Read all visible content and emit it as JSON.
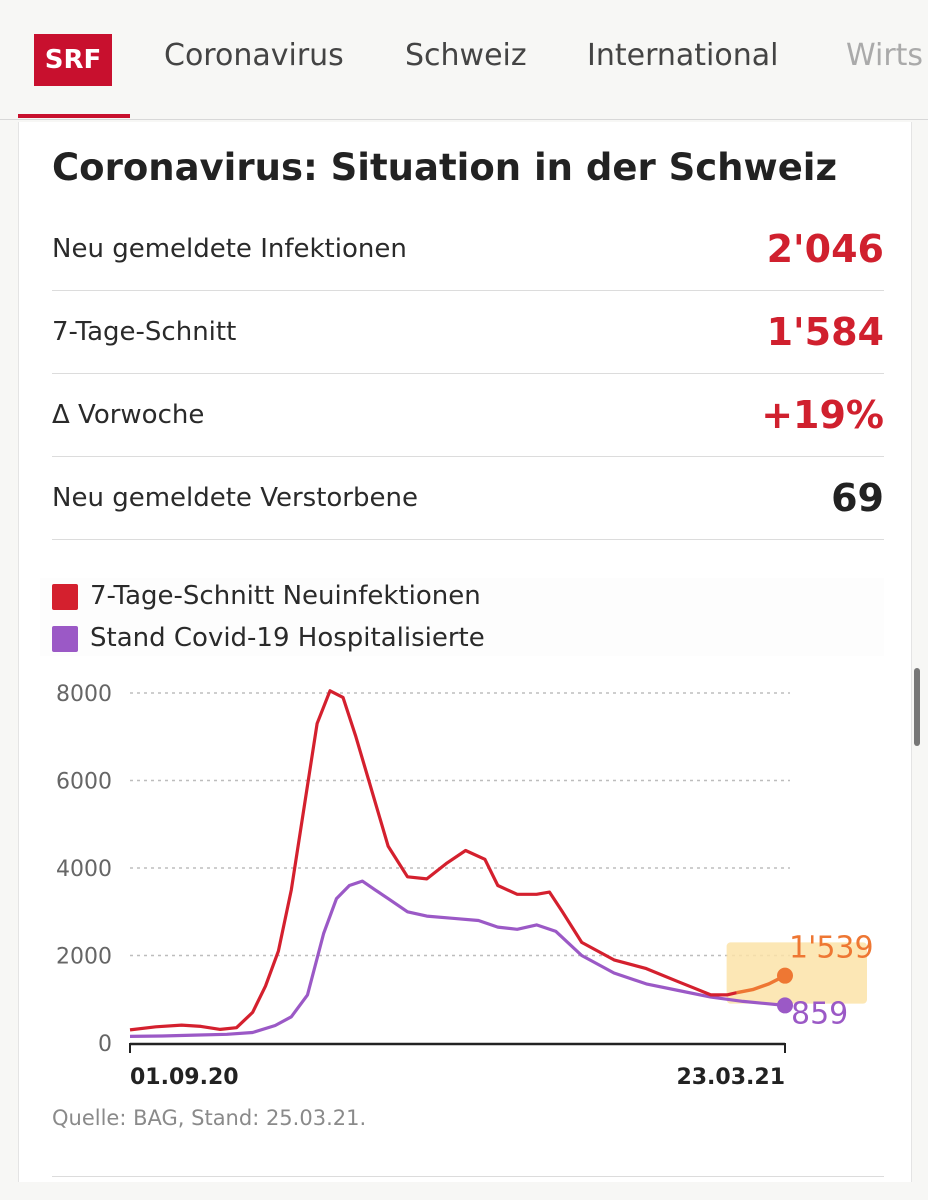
{
  "header": {
    "logo": "SRF",
    "nav": [
      "Coronavirus",
      "Schweiz",
      "International",
      "Wirts"
    ]
  },
  "title": "Coronavirus: Situation in der Schweiz",
  "stats": [
    {
      "label": "Neu gemeldete Infektionen",
      "value": "2'046",
      "color": "#d0202e"
    },
    {
      "label": "7-Tage-Schnitt",
      "value": "1'584",
      "color": "#d0202e"
    },
    {
      "label": "Δ Vorwoche",
      "value": "+19%",
      "color": "#d0202e"
    },
    {
      "label": "Neu gemeldete Verstorbene",
      "value": "69",
      "color": "#222222"
    }
  ],
  "colors": {
    "brand": "#c8102e",
    "infections": "#d4202e",
    "hospitalized": "#9b59c6",
    "highlight": "#ee7733",
    "highlight_bg": "#fbe3a8"
  },
  "chart_data": {
    "type": "line",
    "legend": [
      "7-Tage-Schnitt Neuinfektionen",
      "Stand Covid-19 Hospitalisierte"
    ],
    "legend_placement": "top-left",
    "ylim": [
      0,
      8000
    ],
    "yticks": [
      "8000",
      "6000",
      "4000",
      "2000",
      "0"
    ],
    "x_tick_labels": [
      "01.09.20",
      "23.03.21"
    ],
    "x_range_days": [
      0,
      203
    ],
    "grid": true,
    "series": [
      {
        "name": "7-Tage-Schnitt Neuinfektionen",
        "color": "#d4202e",
        "points": [
          [
            0,
            300
          ],
          [
            8,
            370
          ],
          [
            16,
            410
          ],
          [
            22,
            380
          ],
          [
            28,
            310
          ],
          [
            33,
            350
          ],
          [
            38,
            700
          ],
          [
            42,
            1300
          ],
          [
            46,
            2100
          ],
          [
            50,
            3500
          ],
          [
            54,
            5400
          ],
          [
            58,
            7300
          ],
          [
            62,
            8050
          ],
          [
            66,
            7900
          ],
          [
            70,
            7000
          ],
          [
            74,
            6000
          ],
          [
            80,
            4500
          ],
          [
            86,
            3800
          ],
          [
            92,
            3750
          ],
          [
            98,
            4100
          ],
          [
            104,
            4400
          ],
          [
            110,
            4200
          ],
          [
            114,
            3600
          ],
          [
            120,
            3400
          ],
          [
            126,
            3400
          ],
          [
            130,
            3450
          ],
          [
            134,
            3000
          ],
          [
            140,
            2300
          ],
          [
            150,
            1900
          ],
          [
            160,
            1700
          ],
          [
            170,
            1400
          ],
          [
            175,
            1250
          ],
          [
            180,
            1100
          ],
          [
            185,
            1100
          ],
          [
            188,
            1150
          ]
        ]
      },
      {
        "name": "Stand Covid-19 Hospitalisierte",
        "color": "#9b59c6",
        "points": [
          [
            0,
            150
          ],
          [
            10,
            160
          ],
          [
            20,
            180
          ],
          [
            30,
            200
          ],
          [
            38,
            240
          ],
          [
            45,
            400
          ],
          [
            50,
            600
          ],
          [
            55,
            1100
          ],
          [
            60,
            2500
          ],
          [
            64,
            3300
          ],
          [
            68,
            3600
          ],
          [
            72,
            3700
          ],
          [
            76,
            3500
          ],
          [
            80,
            3300
          ],
          [
            86,
            3000
          ],
          [
            92,
            2900
          ],
          [
            100,
            2850
          ],
          [
            108,
            2800
          ],
          [
            114,
            2650
          ],
          [
            120,
            2600
          ],
          [
            126,
            2700
          ],
          [
            132,
            2550
          ],
          [
            140,
            2000
          ],
          [
            150,
            1600
          ],
          [
            160,
            1350
          ],
          [
            170,
            1200
          ],
          [
            180,
            1050
          ],
          [
            190,
            950
          ],
          [
            203,
            859
          ]
        ]
      }
    ],
    "highlight": {
      "x_days": [
        188,
        203
      ],
      "points": [
        [
          188,
          1150
        ],
        [
          193,
          1220
        ],
        [
          198,
          1350
        ],
        [
          203,
          1539
        ]
      ],
      "label_infections": "1'539",
      "label_hospitalized": "859"
    }
  },
  "source": "Quelle: BAG, Stand: 25.03.21."
}
